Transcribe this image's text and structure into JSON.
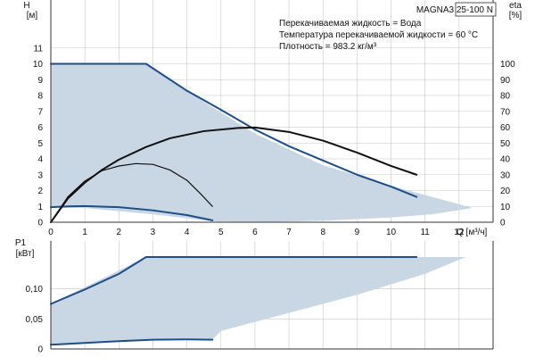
{
  "product": {
    "model": "MAGNA3 25-100 N"
  },
  "colors": {
    "envelope_fill": "#c9d6e3",
    "curve_blue": "#1c4f8a",
    "curve_black": "#111111",
    "grid": "#c8c8c8",
    "axis": "#333333"
  },
  "chart_data": [
    {
      "type": "line",
      "title": "",
      "xlabel": "Q [м³/ч]",
      "ylabel": "H [м]",
      "y2label": "eta [%]",
      "xlim": [
        0,
        13
      ],
      "ylim": [
        0,
        12
      ],
      "y2lim": [
        0,
        120
      ],
      "xticks": [
        0,
        1,
        2,
        3,
        4,
        5,
        6,
        7,
        8,
        9,
        10,
        11,
        12
      ],
      "yticks": [
        0,
        1,
        2,
        3,
        4,
        5,
        6,
        7,
        8,
        9,
        10,
        11
      ],
      "y2ticks": [
        0,
        10,
        20,
        30,
        40,
        50,
        60,
        70,
        80,
        90,
        100
      ],
      "grid": true,
      "annotations": [
        "Перекачиваемая жидкость = Вода",
        "Температура перекачиваемой жидкости = 60 °C",
        "Плотность = 983.2 кг/м³"
      ],
      "envelope": [
        [
          0,
          10
        ],
        [
          2.8,
          10
        ],
        [
          4.5,
          7.6
        ],
        [
          6,
          5.6
        ],
        [
          8,
          3.6
        ],
        [
          10,
          2.3
        ],
        [
          12.4,
          0.9
        ],
        [
          11.2,
          0.5
        ],
        [
          10,
          0.3
        ],
        [
          8,
          0.1
        ],
        [
          6.5,
          0.02
        ],
        [
          4.8,
          0.05
        ],
        [
          3,
          0.5
        ],
        [
          1,
          0.9
        ],
        [
          0,
          0.92
        ]
      ],
      "series": [
        {
          "color": "#1c4f8a",
          "axis": "left",
          "points": [
            [
              0,
              10
            ],
            [
              2.8,
              10
            ],
            [
              4,
              8.3
            ],
            [
              5,
              7.1
            ],
            [
              6,
              5.85
            ],
            [
              7,
              4.8
            ],
            [
              8,
              3.9
            ],
            [
              9,
              3.0
            ],
            [
              10,
              2.25
            ],
            [
              10.75,
              1.6
            ]
          ]
        },
        {
          "color": "#1c4f8a",
          "axis": "left",
          "points": [
            [
              0,
              0.95
            ],
            [
              0.5,
              1.0
            ],
            [
              1,
              1.02
            ],
            [
              2,
              0.95
            ],
            [
              3,
              0.75
            ],
            [
              4,
              0.45
            ],
            [
              4.75,
              0.12
            ]
          ]
        },
        {
          "color": "#111111",
          "axis": "right",
          "points": [
            [
              0,
              0
            ],
            [
              0.5,
              15
            ],
            [
              1,
              25
            ],
            [
              1.5,
              33
            ],
            [
              2,
              39.5
            ],
            [
              2.8,
              47.5
            ],
            [
              3.5,
              53
            ],
            [
              4.5,
              57.5
            ],
            [
              5.5,
              59.5
            ],
            [
              6,
              59.8
            ],
            [
              7,
              57
            ],
            [
              8,
              51.5
            ],
            [
              9,
              44
            ],
            [
              10,
              35.5
            ],
            [
              10.75,
              30
            ]
          ]
        },
        {
          "color": "#111111",
          "axis": "right",
          "points": [
            [
              0,
              0
            ],
            [
              0.5,
              16
            ],
            [
              1,
              26
            ],
            [
              1.5,
              32.5
            ],
            [
              2,
              35.5
            ],
            [
              2.5,
              37
            ],
            [
              3,
              36.5
            ],
            [
              3.5,
              33
            ],
            [
              4,
              26.5
            ],
            [
              4.4,
              18
            ],
            [
              4.75,
              10
            ]
          ]
        }
      ]
    },
    {
      "type": "line",
      "title": "",
      "xlabel": "",
      "ylabel": "P1 [кВт]",
      "xlim": [
        0,
        13
      ],
      "ylim": [
        0,
        0.17
      ],
      "yticks": [
        0,
        0.05,
        0.1
      ],
      "ytick_labels": [
        "0",
        "0,05",
        "0,10"
      ],
      "grid": true,
      "envelope": [
        [
          0,
          0.075
        ],
        [
          2.8,
          0.153
        ],
        [
          12.2,
          0.153
        ],
        [
          11,
          0.125
        ],
        [
          9,
          0.09
        ],
        [
          7,
          0.06
        ],
        [
          5,
          0.03
        ],
        [
          4.75,
          0.015
        ],
        [
          3,
          0.015
        ],
        [
          1.5,
          0.012
        ],
        [
          0,
          0.007
        ]
      ],
      "series": [
        {
          "color": "#1c4f8a",
          "points": [
            [
              0,
              0.075
            ],
            [
              1,
              0.099
            ],
            [
              2,
              0.125
            ],
            [
              2.8,
              0.153
            ],
            [
              10.75,
              0.153
            ]
          ]
        },
        {
          "color": "#1c4f8a",
          "points": [
            [
              0,
              0.007
            ],
            [
              1,
              0.01
            ],
            [
              2,
              0.013
            ],
            [
              3,
              0.0155
            ],
            [
              4,
              0.016
            ],
            [
              4.75,
              0.0155
            ]
          ]
        }
      ]
    }
  ]
}
